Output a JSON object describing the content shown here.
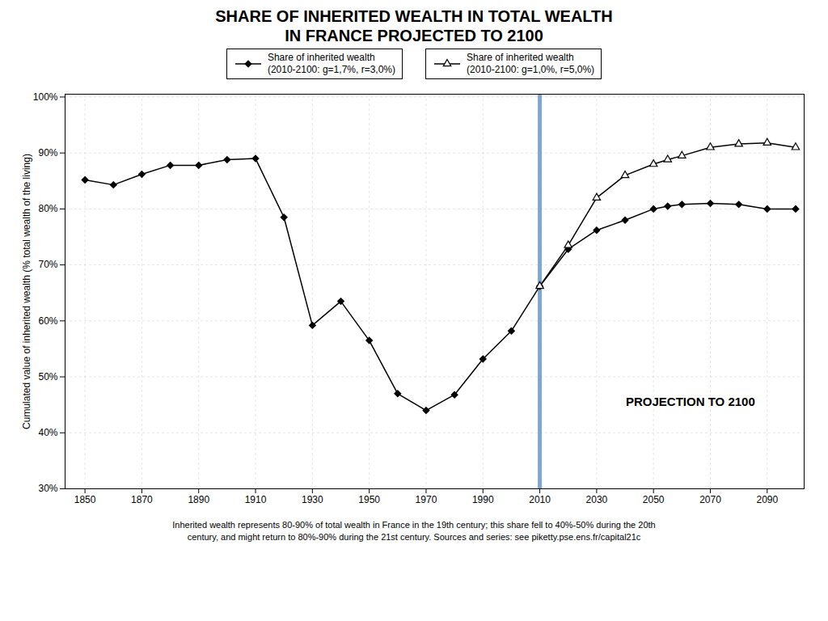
{
  "chart_data": {
    "type": "line",
    "title": "SHARE OF INHERITED WEALTH IN TOTAL WEALTH\nIN FRANCE PROJECTED TO 2100",
    "ylabel": "Cumulated value of inherited wealth (% total wealth of the living)",
    "caption": "Inherited wealth represents 80-90% of total wealth in France in the 19th century; this share fell to 40%-50% during the 20th\ncentury, and might return to 80%-90% during the 21st century.  Sources and series: see piketty.pse.ens.fr/capital21c",
    "xlim": [
      1843,
      2103
    ],
    "xticks": [
      1850,
      1870,
      1890,
      1910,
      1930,
      1950,
      1970,
      1990,
      2010,
      2030,
      2050,
      2070,
      2090
    ],
    "ylim": [
      0.3,
      1.005
    ],
    "yticks": [
      {
        "value": 0.3,
        "label": "30%"
      },
      {
        "value": 0.4,
        "label": "40%"
      },
      {
        "value": 0.5,
        "label": "50%"
      },
      {
        "value": 0.6,
        "label": "60%"
      },
      {
        "value": 0.7,
        "label": "70%"
      },
      {
        "value": 0.8,
        "label": "80%"
      },
      {
        "value": 0.9,
        "label": "90%"
      },
      {
        "value": 1.0,
        "label": "100%"
      }
    ],
    "grid": true,
    "legend": "top",
    "series": [
      {
        "name": "Share of inherited wealth\n(2010-2100: g=1,7%, r=3,0%)",
        "color": "#000000",
        "marker": "diamond",
        "x": [
          1850,
          1860,
          1870,
          1880,
          1890,
          1900,
          1910,
          1920,
          1930,
          1940,
          1950,
          1960,
          1970,
          1980,
          1990,
          2000,
          2010,
          2020,
          2030,
          2040,
          2050,
          2055,
          2060,
          2070,
          2080,
          2090,
          2100
        ],
        "values": [
          0.852,
          0.843,
          0.862,
          0.878,
          0.878,
          0.888,
          0.89,
          0.785,
          0.592,
          0.635,
          0.565,
          0.47,
          0.44,
          0.468,
          0.532,
          0.582,
          0.662,
          0.728,
          0.762,
          0.78,
          0.8,
          0.805,
          0.808,
          0.81,
          0.808,
          0.8,
          0.8
        ]
      },
      {
        "name": "Share of inherited wealth\n(2010-2100: g=1,0%, r=5,0%)",
        "color": "#000000",
        "marker": "triangle",
        "x": [
          2010,
          2020,
          2030,
          2040,
          2050,
          2055,
          2060,
          2070,
          2080,
          2090,
          2100
        ],
        "values": [
          0.662,
          0.735,
          0.82,
          0.86,
          0.88,
          0.888,
          0.895,
          0.91,
          0.916,
          0.918,
          0.91
        ]
      }
    ],
    "vertical_line": {
      "x": 2010,
      "color": "#6699cc"
    },
    "annotations": [
      {
        "text": "PROJECTION TO 2100",
        "x": 2063,
        "y": 0.455
      }
    ]
  }
}
